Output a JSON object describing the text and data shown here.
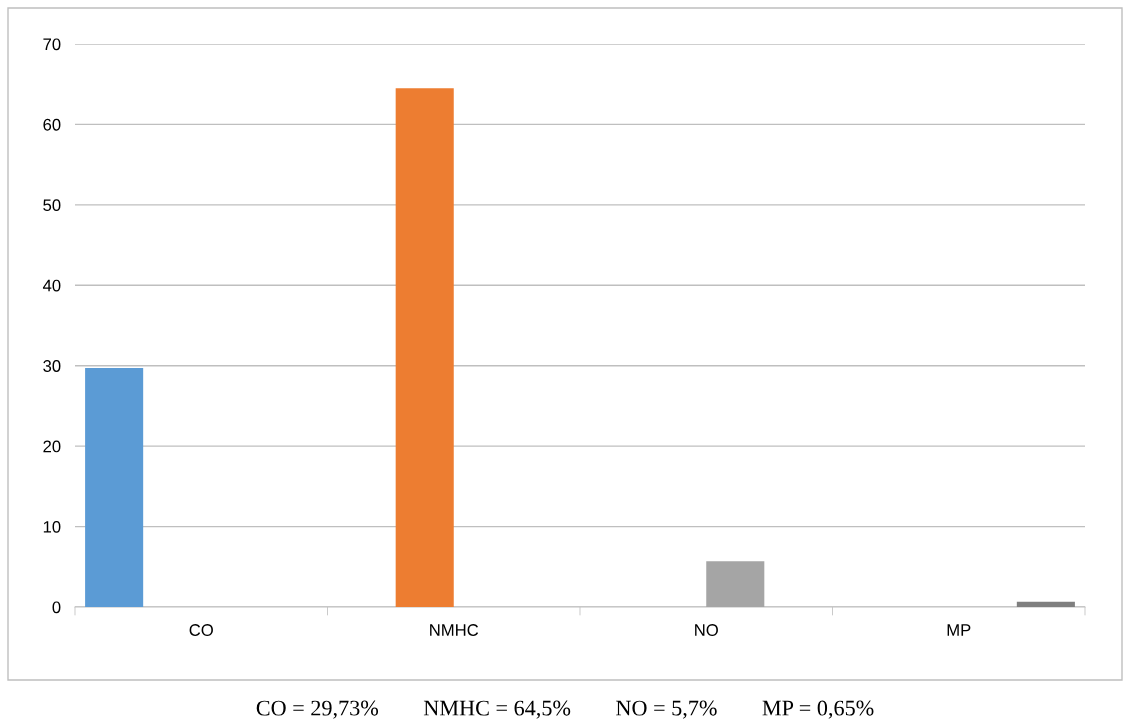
{
  "chart_data": {
    "type": "bar",
    "categories": [
      "CO",
      "NMHC",
      "NO",
      "MP"
    ],
    "series": [
      {
        "color": "#5b9bd5",
        "values": [
          29.73,
          null,
          null,
          null
        ]
      },
      {
        "color": "#ed7d31",
        "values": [
          null,
          64.5,
          null,
          null
        ]
      },
      {
        "color": "#a5a5a5",
        "values": [
          null,
          null,
          5.7,
          null
        ]
      },
      {
        "color": "#7f7f7f",
        "values": [
          null,
          null,
          null,
          0.65
        ]
      }
    ],
    "ylim": [
      0,
      70
    ],
    "yticks": [
      0,
      10,
      20,
      30,
      40,
      50,
      60,
      70
    ],
    "grid": "y",
    "legend": false,
    "annotations": [
      "CO = 29,73%        NMHC = 64,5%        NO = 5,7%        MP = 0,65%"
    ]
  }
}
